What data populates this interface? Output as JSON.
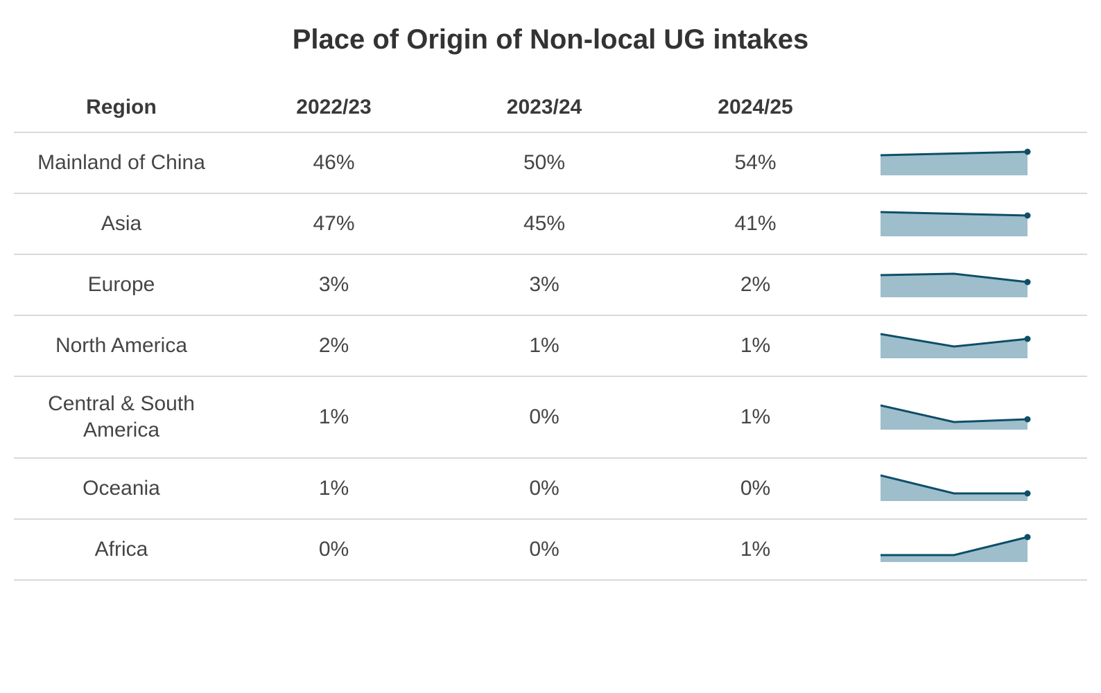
{
  "title": "Place of Origin of Non-local UG intakes",
  "table": {
    "header": {
      "region": "Region",
      "years": [
        "2022/23",
        "2023/24",
        "2024/25"
      ],
      "trend": ""
    }
  },
  "chart_data": {
    "type": "table",
    "title": "Place of Origin of Non-local UG intakes",
    "categories": [
      "2022/23",
      "2023/24",
      "2024/25"
    ],
    "unit": "%",
    "legend": "none",
    "row_chart_type": "area-sparkline",
    "series": [
      {
        "name": "Mainland of China",
        "values": [
          46,
          50,
          54
        ],
        "display": [
          "46%",
          "50%",
          "54%"
        ],
        "spark": [
          29,
          31.5,
          34
        ]
      },
      {
        "name": "Asia",
        "values": [
          47,
          45,
          41
        ],
        "display": [
          "47%",
          "45%",
          "41%"
        ],
        "spark": [
          35,
          32.5,
          30
        ]
      },
      {
        "name": "Europe",
        "values": [
          3,
          3,
          2
        ],
        "display": [
          "3%",
          "3%",
          "2%"
        ],
        "spark": [
          32,
          34,
          22
        ]
      },
      {
        "name": "North America",
        "values": [
          2,
          1,
          1
        ],
        "display": [
          "2%",
          "1%",
          "1%"
        ],
        "spark": [
          35,
          17,
          28
        ]
      },
      {
        "name": "Central & South America",
        "values": [
          1,
          0,
          1
        ],
        "display": [
          "1%",
          "0%",
          "1%"
        ],
        "spark": [
          35,
          11,
          15
        ]
      },
      {
        "name": "Oceania",
        "values": [
          1,
          0,
          0
        ],
        "display": [
          "1%",
          "0%",
          "0%"
        ],
        "spark": [
          37,
          11,
          11
        ]
      },
      {
        "name": "Africa",
        "values": [
          0,
          0,
          1
        ],
        "display": [
          "0%",
          "0%",
          "1%"
        ],
        "spark": [
          10,
          10,
          36
        ]
      }
    ],
    "sparkline_style": {
      "line_color": "#0e4e68",
      "fill_color": "#9ebecc",
      "dot_color": "#0e4e68",
      "line_width": 3,
      "dot_radius": 4.5
    }
  },
  "colors": {
    "background": "#ffffff",
    "title_text": "#333333",
    "header_text": "#3a3a3a",
    "cell_text": "#454545",
    "divider": "#d9d9d9"
  }
}
